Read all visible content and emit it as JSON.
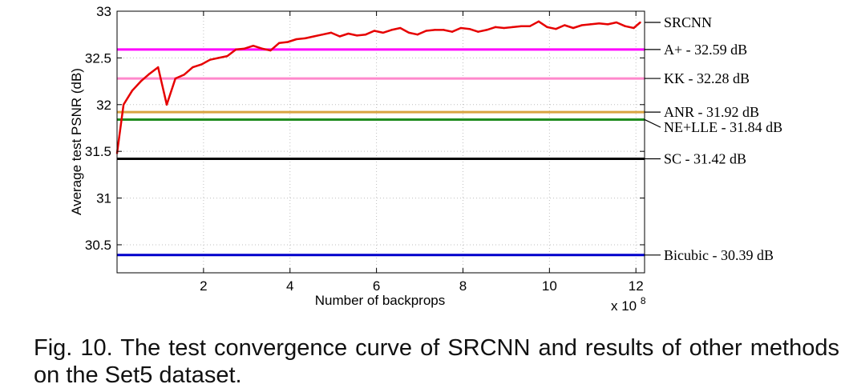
{
  "chart_data": {
    "type": "line",
    "title": "",
    "xlabel": "Number of backprops",
    "ylabel": "Average test PSNR (dB)",
    "x_scale_label": "x 10",
    "x_scale_exponent": "8",
    "xlim": [
      0,
      12.2
    ],
    "ylim": [
      30.2,
      33
    ],
    "xticks": [
      2,
      4,
      6,
      8,
      10,
      12
    ],
    "yticks": [
      30.5,
      31,
      31.5,
      32,
      32.5,
      33
    ],
    "grid": true,
    "series": [
      {
        "name": "SRCNN",
        "label": "SRCNN",
        "color": "#e60000",
        "x": [
          0.0,
          0.15,
          0.35,
          0.55,
          0.75,
          0.95,
          1.15,
          1.35,
          1.55,
          1.75,
          1.95,
          2.15,
          2.35,
          2.55,
          2.75,
          2.95,
          3.15,
          3.35,
          3.55,
          3.75,
          3.95,
          4.15,
          4.35,
          4.55,
          4.75,
          4.95,
          5.15,
          5.35,
          5.55,
          5.75,
          5.95,
          6.15,
          6.35,
          6.55,
          6.75,
          6.95,
          7.15,
          7.35,
          7.55,
          7.75,
          7.95,
          8.15,
          8.35,
          8.55,
          8.75,
          8.95,
          9.15,
          9.35,
          9.55,
          9.75,
          9.95,
          10.15,
          10.35,
          10.55,
          10.75,
          10.95,
          11.15,
          11.35,
          11.55,
          11.75,
          11.95,
          12.1
        ],
        "y": [
          31.48,
          32.0,
          32.15,
          32.25,
          32.33,
          32.4,
          32.0,
          32.28,
          32.32,
          32.4,
          32.43,
          32.48,
          32.5,
          32.52,
          32.59,
          32.6,
          32.63,
          32.6,
          32.58,
          32.66,
          32.67,
          32.7,
          32.71,
          32.73,
          32.75,
          32.77,
          32.73,
          32.76,
          32.74,
          32.75,
          32.79,
          32.77,
          32.8,
          32.82,
          32.77,
          32.75,
          32.79,
          32.8,
          32.8,
          32.78,
          32.82,
          32.81,
          32.78,
          32.8,
          32.83,
          32.82,
          32.83,
          32.84,
          32.84,
          32.89,
          32.83,
          32.81,
          32.85,
          32.82,
          32.85,
          32.86,
          32.87,
          32.86,
          32.88,
          32.84,
          32.82,
          32.88
        ]
      }
    ],
    "reference_lines": [
      {
        "name": "A+",
        "label": "A+ - 32.59 dB",
        "value": 32.59,
        "color": "#ff00ff"
      },
      {
        "name": "KK",
        "label": "KK - 32.28 dB",
        "value": 32.28,
        "color": "#ff88cc"
      },
      {
        "name": "ANR",
        "label": "ANR - 31.92 dB",
        "value": 31.92,
        "color": "#d9a441"
      },
      {
        "name": "NE+LLE",
        "label": "NE+LLE - 31.84 dB",
        "value": 31.84,
        "color": "#1f8c1f"
      },
      {
        "name": "SC",
        "label": "SC - 31.42 dB",
        "value": 31.42,
        "color": "#000000"
      },
      {
        "name": "Bicubic",
        "label": "Bicubic - 30.39 dB",
        "value": 30.39,
        "color": "#0000cc"
      }
    ]
  },
  "caption": "Fig. 10. The test convergence curve of SRCNN and results of other methods on the Set5 dataset."
}
